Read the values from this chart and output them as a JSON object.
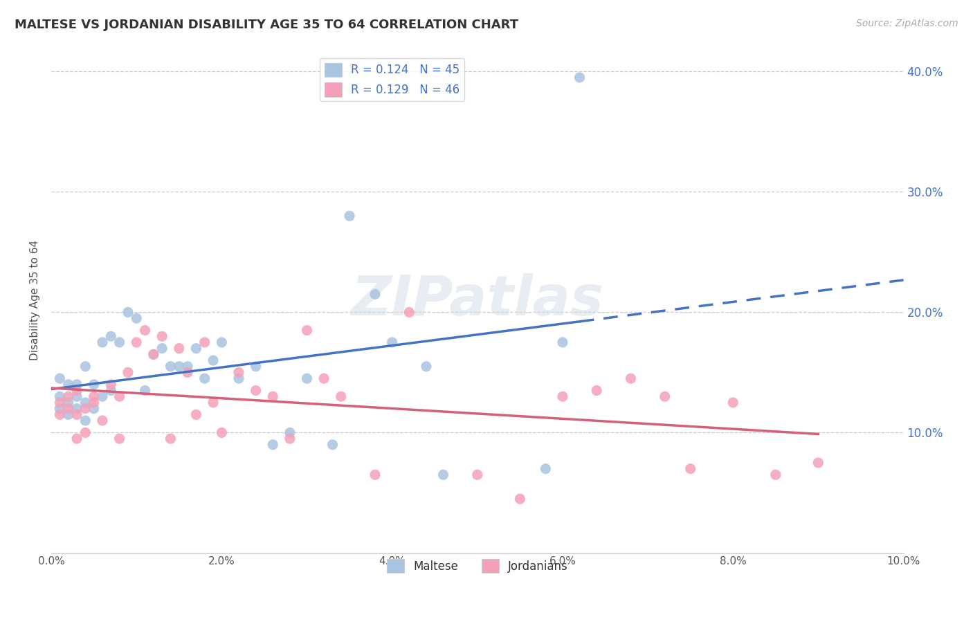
{
  "title": "MALTESE VS JORDANIAN DISABILITY AGE 35 TO 64 CORRELATION CHART",
  "source_text": "Source: ZipAtlas.com",
  "ylabel": "Disability Age 35 to 64",
  "xlim": [
    0.0,
    0.1
  ],
  "ylim": [
    0.0,
    0.42
  ],
  "xtick_vals": [
    0.0,
    0.02,
    0.04,
    0.06,
    0.08,
    0.1
  ],
  "xtick_labels": [
    "0.0%",
    "2.0%",
    "4.0%",
    "6.0%",
    "8.0%",
    "10.0%"
  ],
  "ytick_vals": [
    0.0,
    0.1,
    0.2,
    0.3,
    0.4
  ],
  "ytick_labels": [
    "",
    "10.0%",
    "20.0%",
    "30.0%",
    "40.0%"
  ],
  "maltese_color": "#a8c4e0",
  "jordanian_color": "#f4a0b8",
  "maltese_line_color": "#4472c4",
  "jordanian_line_color": "#d4607a",
  "legend_text_color": "#4472c4",
  "R_maltese": 0.124,
  "N_maltese": 45,
  "R_jordanian": 0.129,
  "N_jordanian": 46,
  "watermark": "ZIPatlas",
  "maltese_x": [
    0.001,
    0.001,
    0.001,
    0.002,
    0.002,
    0.002,
    0.003,
    0.003,
    0.003,
    0.004,
    0.004,
    0.004,
    0.005,
    0.005,
    0.006,
    0.006,
    0.007,
    0.007,
    0.008,
    0.009,
    0.01,
    0.011,
    0.012,
    0.013,
    0.014,
    0.015,
    0.016,
    0.017,
    0.018,
    0.019,
    0.02,
    0.022,
    0.024,
    0.026,
    0.028,
    0.03,
    0.033,
    0.035,
    0.038,
    0.04,
    0.044,
    0.046,
    0.058,
    0.06,
    0.062
  ],
  "maltese_y": [
    0.13,
    0.145,
    0.12,
    0.125,
    0.14,
    0.115,
    0.13,
    0.12,
    0.14,
    0.125,
    0.155,
    0.11,
    0.14,
    0.12,
    0.175,
    0.13,
    0.18,
    0.135,
    0.175,
    0.2,
    0.195,
    0.135,
    0.165,
    0.17,
    0.155,
    0.155,
    0.155,
    0.17,
    0.145,
    0.16,
    0.175,
    0.145,
    0.155,
    0.09,
    0.1,
    0.145,
    0.09,
    0.28,
    0.215,
    0.175,
    0.155,
    0.065,
    0.07,
    0.175,
    0.395
  ],
  "jordanian_x": [
    0.001,
    0.001,
    0.002,
    0.002,
    0.003,
    0.003,
    0.003,
    0.004,
    0.004,
    0.005,
    0.005,
    0.006,
    0.007,
    0.008,
    0.008,
    0.009,
    0.01,
    0.011,
    0.012,
    0.013,
    0.014,
    0.015,
    0.016,
    0.017,
    0.018,
    0.019,
    0.02,
    0.022,
    0.024,
    0.026,
    0.028,
    0.03,
    0.032,
    0.034,
    0.038,
    0.042,
    0.05,
    0.055,
    0.06,
    0.064,
    0.068,
    0.072,
    0.075,
    0.08,
    0.085,
    0.09
  ],
  "jordanian_y": [
    0.125,
    0.115,
    0.13,
    0.12,
    0.095,
    0.115,
    0.135,
    0.1,
    0.12,
    0.13,
    0.125,
    0.11,
    0.14,
    0.13,
    0.095,
    0.15,
    0.175,
    0.185,
    0.165,
    0.18,
    0.095,
    0.17,
    0.15,
    0.115,
    0.175,
    0.125,
    0.1,
    0.15,
    0.135,
    0.13,
    0.095,
    0.185,
    0.145,
    0.13,
    0.065,
    0.2,
    0.065,
    0.045,
    0.13,
    0.135,
    0.145,
    0.13,
    0.07,
    0.125,
    0.065,
    0.075
  ]
}
